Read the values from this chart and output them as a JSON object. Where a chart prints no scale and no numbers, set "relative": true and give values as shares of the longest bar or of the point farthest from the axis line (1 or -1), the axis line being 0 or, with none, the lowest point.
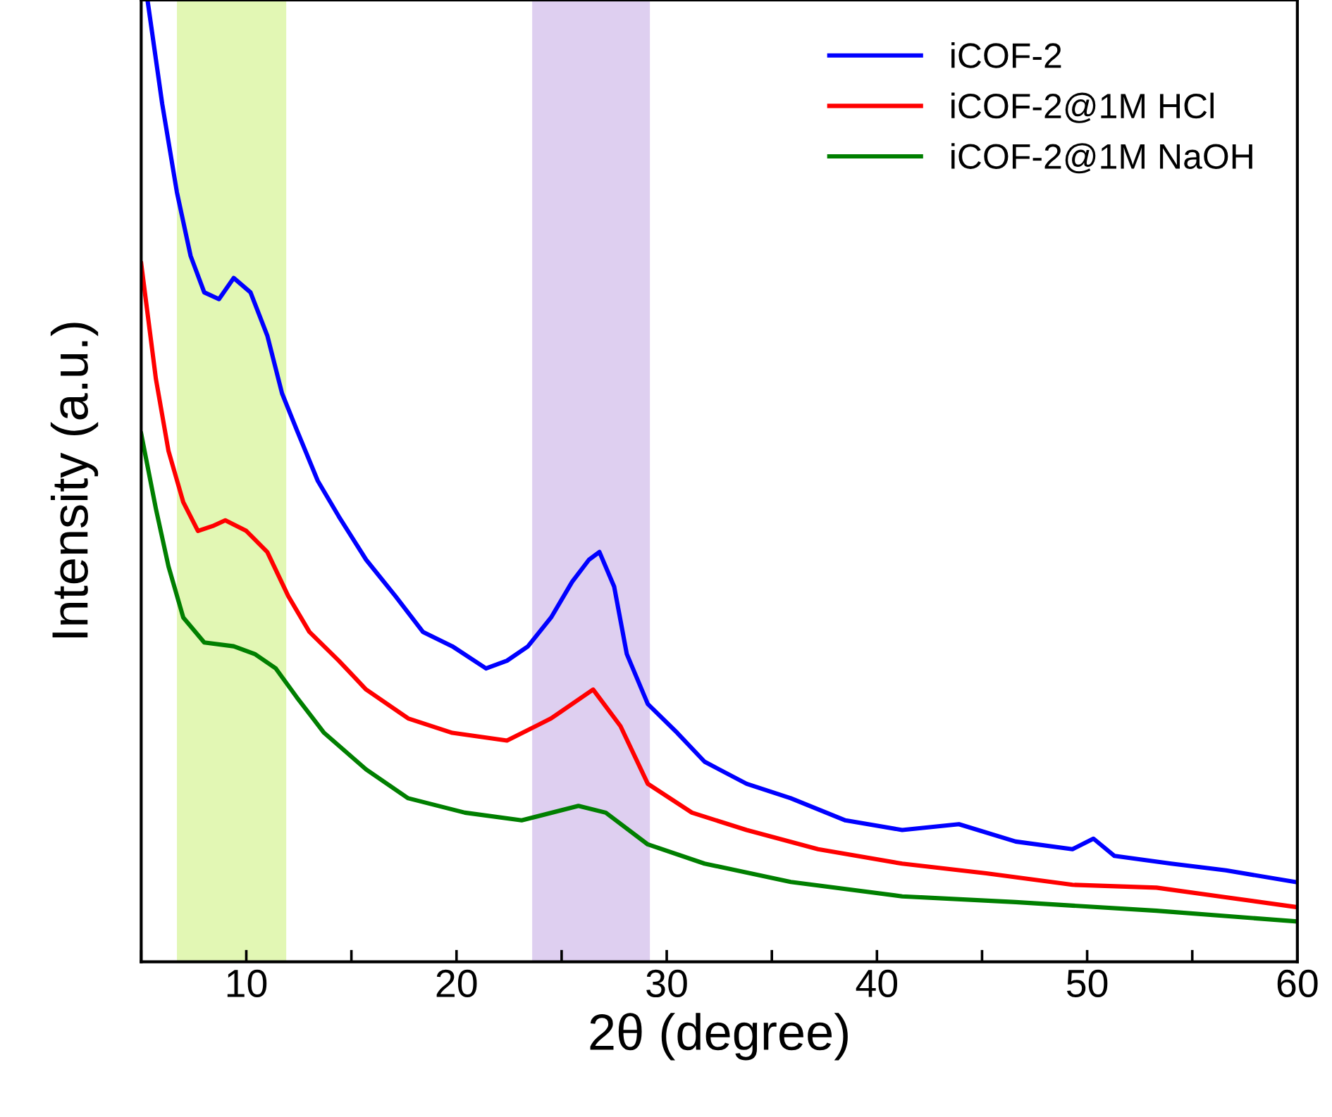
{
  "chart_data": {
    "type": "line",
    "relative": true,
    "xlabel": "2θ (degree)",
    "ylabel": "Intensity (a.u.)",
    "xlim": [
      5,
      60
    ],
    "xticks": [
      {
        "value": 5,
        "label": null
      },
      10,
      {
        "value": 15,
        "label": null
      },
      20,
      {
        "value": 25,
        "label": null
      },
      30,
      {
        "value": 35,
        "label": null
      },
      40,
      {
        "value": 45,
        "label": null
      },
      50,
      {
        "value": 55,
        "label": null
      },
      60
    ],
    "legend": "top right",
    "grid": false,
    "marker": "none",
    "line_style": "solid",
    "bands": [
      {
        "axis": "x",
        "from": 6.7,
        "to": 11.9,
        "color": "#e2f7b4"
      },
      {
        "axis": "x",
        "from": 23.6,
        "to": 29.2,
        "color": "#decff0"
      }
    ],
    "series": [
      {
        "name": "iCOF-2",
        "color": "#0000ff",
        "x": [
          5.3,
          6.0,
          6.7,
          7.35,
          8.0,
          8.7,
          9.4,
          10.2,
          11.0,
          11.7,
          12.4,
          13.4,
          14.4,
          15.7,
          17.1,
          18.4,
          19.8,
          21.4,
          22.4,
          23.4,
          24.5,
          25.5,
          26.3,
          26.8,
          27.5,
          28.1,
          29.1,
          30.5,
          31.8,
          33.8,
          35.9,
          38.5,
          41.2,
          43.9,
          46.6,
          49.3,
          50.3,
          51.3,
          54.0,
          56.6,
          59.9
        ],
        "values": [
          1.0,
          0.892,
          0.8,
          0.734,
          0.696,
          0.689,
          0.711,
          0.696,
          0.651,
          0.591,
          0.553,
          0.5,
          0.463,
          0.418,
          0.38,
          0.343,
          0.328,
          0.305,
          0.313,
          0.328,
          0.358,
          0.395,
          0.418,
          0.426,
          0.39,
          0.32,
          0.268,
          0.238,
          0.208,
          0.185,
          0.17,
          0.147,
          0.137,
          0.143,
          0.125,
          0.117,
          0.128,
          0.11,
          0.102,
          0.095,
          0.083
        ]
      },
      {
        "name": "iCOF-2@1M HCl",
        "color": "#ff0000",
        "x": [
          5.0,
          5.7,
          6.3,
          7.0,
          7.7,
          8.4,
          9.0,
          10.0,
          11.0,
          12.0,
          13.0,
          14.4,
          15.7,
          17.7,
          19.8,
          22.4,
          24.5,
          26.5,
          27.8,
          29.1,
          31.2,
          33.8,
          37.2,
          41.2,
          45.2,
          49.3,
          53.3,
          59.9
        ],
        "values": [
          0.726,
          0.606,
          0.531,
          0.478,
          0.448,
          0.453,
          0.459,
          0.448,
          0.426,
          0.38,
          0.343,
          0.313,
          0.283,
          0.253,
          0.238,
          0.23,
          0.253,
          0.283,
          0.245,
          0.185,
          0.155,
          0.137,
          0.117,
          0.102,
          0.092,
          0.08,
          0.077,
          0.057
        ]
      },
      {
        "name": "iCOF-2@1M NaOH",
        "color": "#007f00",
        "x": [
          5.0,
          5.7,
          6.3,
          7.0,
          8.0,
          9.4,
          10.4,
          11.4,
          12.4,
          13.7,
          15.7,
          17.7,
          20.4,
          23.1,
          25.8,
          27.1,
          29.1,
          31.8,
          35.9,
          41.2,
          46.6,
          53.3,
          59.9
        ],
        "values": [
          0.549,
          0.471,
          0.411,
          0.358,
          0.332,
          0.328,
          0.32,
          0.305,
          0.275,
          0.238,
          0.2,
          0.17,
          0.155,
          0.147,
          0.162,
          0.155,
          0.122,
          0.102,
          0.083,
          0.068,
          0.062,
          0.053,
          0.042
        ]
      }
    ]
  }
}
